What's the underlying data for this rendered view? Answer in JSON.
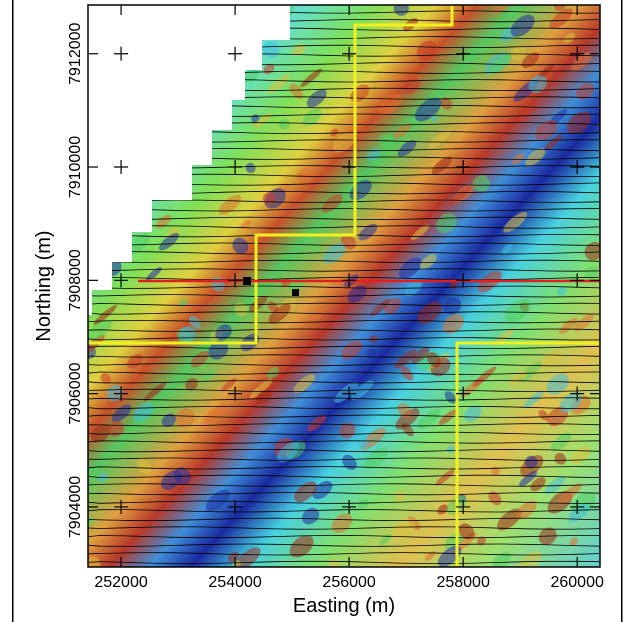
{
  "map": {
    "x_label": "Easting (m)",
    "y_label": "Northing (m)",
    "xlim": [
      251420,
      260400
    ],
    "xticks": [
      252000,
      254000,
      256000,
      258000,
      260000
    ],
    "ylim": [
      7902940,
      7912860
    ],
    "yticks": [
      7904000,
      7906000,
      7908000,
      7910000,
      7912000
    ]
  }
}
